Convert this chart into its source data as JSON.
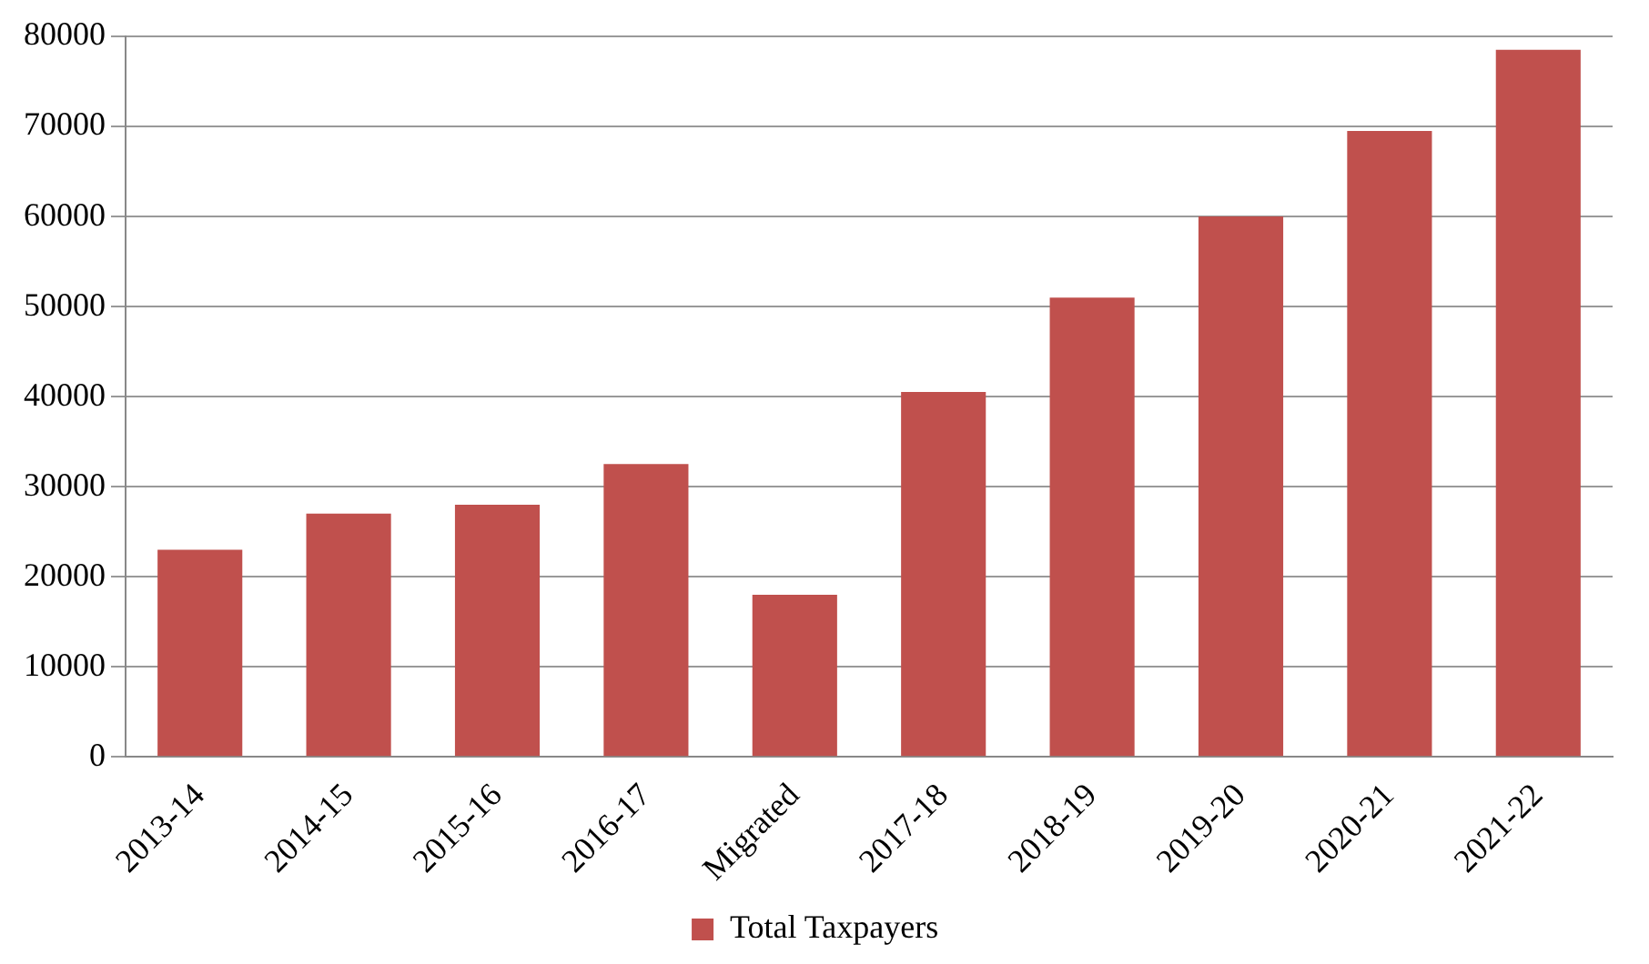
{
  "chart_data": {
    "type": "bar",
    "categories": [
      "2013-14",
      "2014-15",
      "2015-16",
      "2016-17",
      "Migrated",
      "2017-18",
      "2018-19",
      "2019-20",
      "2020-21",
      "2021-22"
    ],
    "series": [
      {
        "name": "Total Taxpayers",
        "color": "#c0504d",
        "values": [
          23000,
          27000,
          28000,
          32500,
          18000,
          40500,
          51000,
          60000,
          69500,
          78500
        ]
      }
    ],
    "ylim": [
      0,
      80000
    ],
    "yticks": [
      0,
      10000,
      20000,
      30000,
      40000,
      50000,
      60000,
      70000,
      80000
    ],
    "grid": "y",
    "legend": "bottom"
  }
}
